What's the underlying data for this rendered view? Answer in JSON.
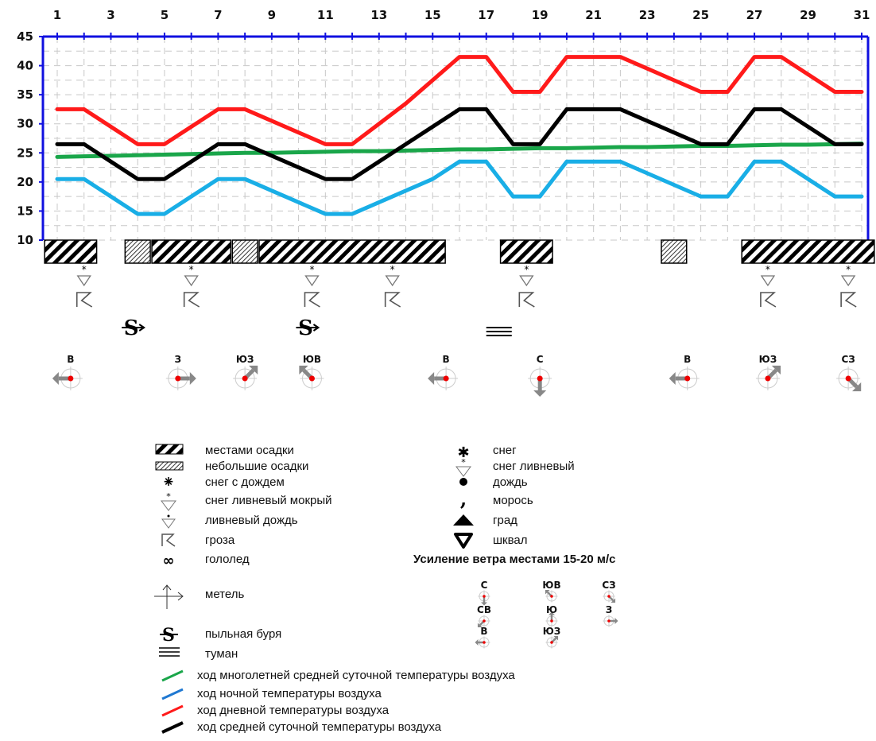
{
  "chart_data": {
    "type": "line",
    "x": [
      1,
      2,
      3,
      4,
      5,
      6,
      7,
      8,
      9,
      10,
      11,
      12,
      13,
      14,
      15,
      16,
      17,
      18,
      19,
      20,
      21,
      22,
      23,
      24,
      25,
      26,
      27,
      28,
      29,
      30,
      31
    ],
    "x_ticks": [
      "1",
      "3",
      "5",
      "7",
      "9",
      "11",
      "13",
      "15",
      "17",
      "19",
      "21",
      "23",
      "25",
      "27",
      "29",
      "31"
    ],
    "y_ticks": [
      "10",
      "15",
      "20",
      "25",
      "30",
      "35",
      "40",
      "45"
    ],
    "ylim": [
      10,
      45
    ],
    "grid": true,
    "series": [
      {
        "name": "ход многолетней средней суточной температуры воздуха",
        "color": "#1aa64a",
        "values": [
          24.3,
          24.4,
          24.5,
          24.6,
          24.7,
          24.8,
          24.9,
          25.0,
          25.0,
          25.1,
          25.2,
          25.3,
          25.3,
          25.4,
          25.5,
          25.6,
          25.6,
          25.7,
          25.8,
          25.8,
          25.9,
          26.0,
          26.0,
          26.1,
          26.2,
          26.2,
          26.3,
          26.4,
          26.4,
          26.5,
          26.6
        ]
      },
      {
        "name": "ход ночной температуры воздуха",
        "color": "#19aee6",
        "values": [
          20.5,
          20.5,
          17.5,
          14.5,
          14.5,
          17.5,
          20.5,
          20.5,
          18.5,
          16.5,
          14.5,
          14.5,
          16.5,
          18.5,
          20.5,
          23.5,
          23.5,
          17.5,
          17.5,
          23.5,
          23.5,
          23.5,
          21.5,
          19.5,
          17.5,
          17.5,
          23.5,
          23.5,
          20.5,
          17.5,
          17.5
        ]
      },
      {
        "name": "ход дневной температуры воздуха",
        "color": "#ff1a1a",
        "values": [
          32.5,
          32.5,
          29.5,
          26.5,
          26.5,
          29.5,
          32.5,
          32.5,
          30.5,
          28.5,
          26.5,
          26.5,
          30.0,
          33.5,
          37.5,
          41.5,
          41.5,
          35.5,
          35.5,
          41.5,
          41.5,
          41.5,
          39.5,
          37.5,
          35.5,
          35.5,
          41.5,
          41.5,
          38.5,
          35.5,
          35.5
        ]
      },
      {
        "name": "ход средней суточной температуры воздуха",
        "color": "#000000",
        "values": [
          26.5,
          26.5,
          23.5,
          20.5,
          20.5,
          23.5,
          26.5,
          26.5,
          24.5,
          22.5,
          20.5,
          20.5,
          23.5,
          26.5,
          29.5,
          32.5,
          32.5,
          26.5,
          26.5,
          32.5,
          32.5,
          32.5,
          30.5,
          28.5,
          26.5,
          26.5,
          32.5,
          32.5,
          29.5,
          26.5,
          26.5
        ]
      }
    ],
    "precipitation": [
      {
        "type": "местами осадки",
        "from": 1,
        "to": 2
      },
      {
        "type": "небольшие осадки",
        "from": 4,
        "to": 4
      },
      {
        "type": "местами осадки",
        "from": 5,
        "to": 7
      },
      {
        "type": "небольшие осадки",
        "from": 8,
        "to": 8
      },
      {
        "type": "местами осадки",
        "from": 9,
        "to": 15
      },
      {
        "type": "местами осадки",
        "from": 18,
        "to": 19
      },
      {
        "type": "небольшие осадки",
        "from": 24,
        "to": 24
      },
      {
        "type": "местами осадки",
        "from": 27,
        "to": 31
      }
    ],
    "phenomena": [
      {
        "day": 2,
        "symbols": [
          "snow-shower-icon",
          "thunderstorm-icon"
        ]
      },
      {
        "day": 6,
        "symbols": [
          "snow-shower-icon",
          "thunderstorm-icon"
        ]
      },
      {
        "day": 10.5,
        "symbols": [
          "snow-shower-icon",
          "thunderstorm-icon"
        ]
      },
      {
        "day": 13.5,
        "symbols": [
          "snow-shower-icon",
          "thunderstorm-icon"
        ]
      },
      {
        "day": 18.5,
        "symbols": [
          "snow-shower-icon",
          "thunderstorm-icon"
        ]
      },
      {
        "day": 27.5,
        "symbols": [
          "snow-shower-icon",
          "thunderstorm-icon"
        ]
      },
      {
        "day": 30.5,
        "symbols": [
          "snow-shower-icon",
          "thunderstorm-icon"
        ]
      }
    ],
    "dust_storms": [
      4,
      10.5
    ],
    "fog": [
      17
    ],
    "winds": [
      {
        "day": 1.5,
        "label": "В",
        "dir": "E"
      },
      {
        "day": 5.5,
        "label": "З",
        "dir": "W"
      },
      {
        "day": 8,
        "label": "ЮЗ",
        "dir": "SW"
      },
      {
        "day": 10.5,
        "label": "ЮВ",
        "dir": "SE"
      },
      {
        "day": 15.5,
        "label": "В",
        "dir": "E"
      },
      {
        "day": 19,
        "label": "С",
        "dir": "N"
      },
      {
        "day": 24.5,
        "label": "В",
        "dir": "E"
      },
      {
        "day": 27.5,
        "label": "ЮЗ",
        "dir": "SW"
      },
      {
        "day": 30.5,
        "label": "СЗ",
        "dir": "NW"
      }
    ]
  },
  "legend": {
    "left": [
      {
        "icon": "heavy-precip-icon",
        "label": "местами осадки"
      },
      {
        "icon": "light-precip-icon",
        "label": "небольшие осадки"
      },
      {
        "icon": "sleet-icon",
        "label": "снег с дождем"
      },
      {
        "icon": "wet-snow-shower-icon",
        "label": "снег ливневый мокрый"
      },
      {
        "icon": "rain-shower-icon",
        "label": "ливневый дождь"
      },
      {
        "icon": "thunderstorm-icon",
        "label": "гроза"
      },
      {
        "icon": "ice-icon",
        "label": "гололед"
      },
      {
        "icon": "blizzard-icon",
        "label": "метель"
      },
      {
        "icon": "dust-storm-icon",
        "label": "пыльная буря"
      },
      {
        "icon": "fog-icon",
        "label": "туман"
      }
    ],
    "right": [
      {
        "icon": "snow-icon",
        "label": "снег"
      },
      {
        "icon": "snow-shower-icon",
        "label": "снег ливневый"
      },
      {
        "icon": "rain-icon",
        "label": "дождь"
      },
      {
        "icon": "drizzle-icon",
        "label": "морось"
      },
      {
        "icon": "hail-icon",
        "label": "град"
      },
      {
        "icon": "squall-icon",
        "label": "шквал"
      }
    ],
    "wind_title": "Усиление ветра местами 15-20 м/с",
    "wind_keys": [
      {
        "label": "С",
        "dir": "N"
      },
      {
        "label": "ЮВ",
        "dir": "SE"
      },
      {
        "label": "СЗ",
        "dir": "NW"
      },
      {
        "label": "СВ",
        "dir": "NE"
      },
      {
        "label": "Ю",
        "dir": "S"
      },
      {
        "label": "З",
        "dir": "W"
      },
      {
        "label": "В",
        "dir": "E"
      },
      {
        "label": "ЮЗ",
        "dir": "SW"
      }
    ],
    "lines": [
      {
        "label": "ход многолетней средней суточной температуры воздуха",
        "color": "#1aa64a"
      },
      {
        "label": "ход ночной температуры воздуха",
        "color": "#1f78d1"
      },
      {
        "label": "ход дневной температуры воздуха",
        "color": "#ff1a1a"
      },
      {
        "label": "ход средней суточной температуры воздуха",
        "color": "#000000"
      }
    ]
  }
}
